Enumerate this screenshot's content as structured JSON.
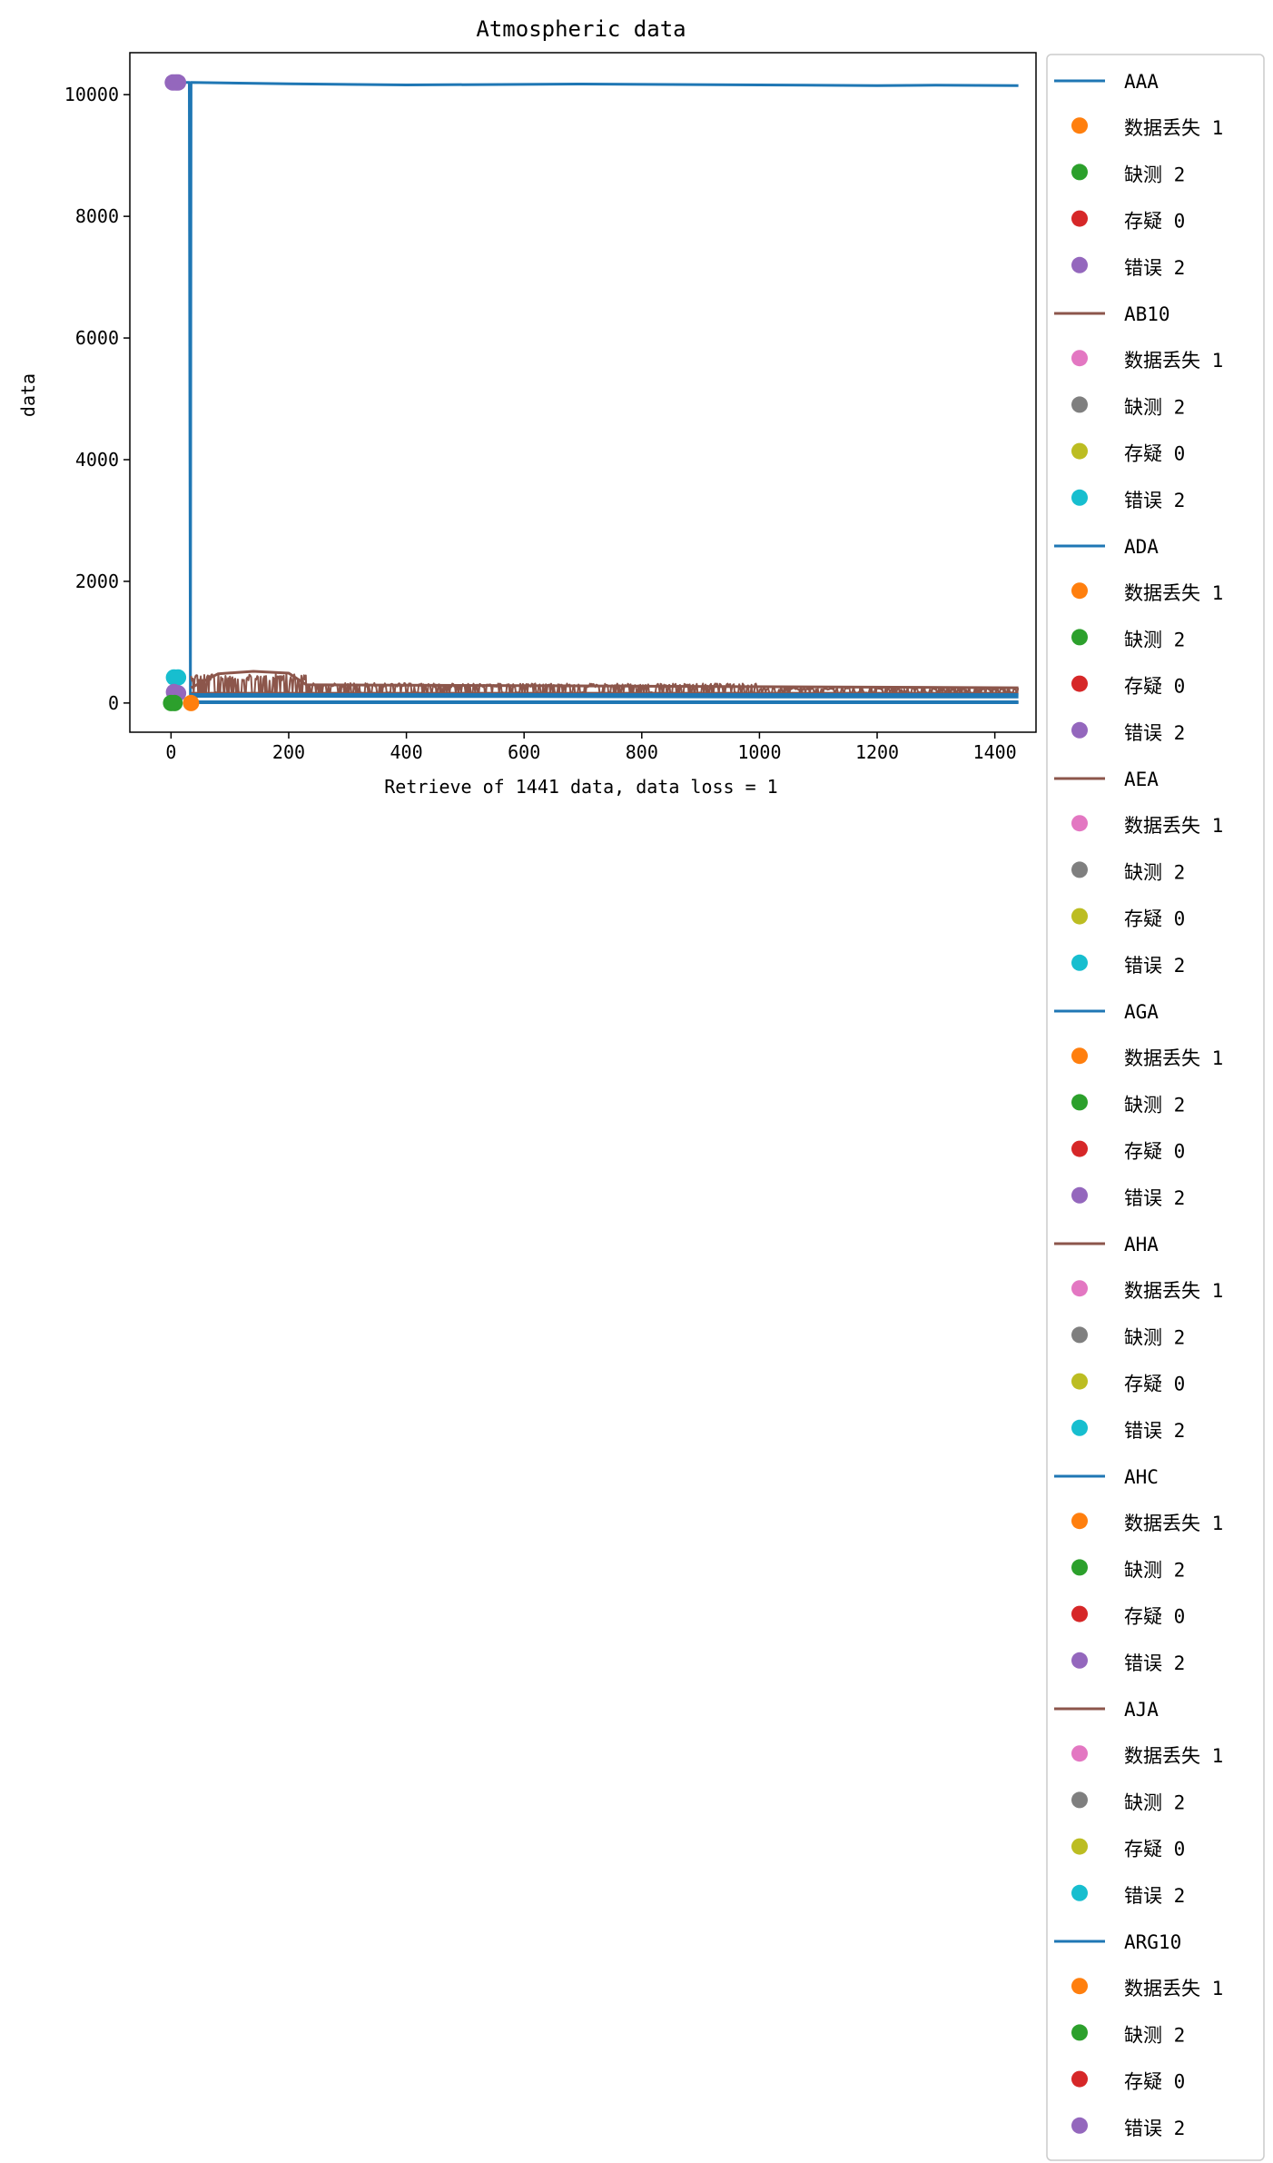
{
  "chart_data": {
    "type": "line",
    "title": "Atmospheric data",
    "xlabel": "Retrieve of 1441 data, data loss = 1",
    "ylabel": "data",
    "xlim": [
      -70,
      1470
    ],
    "ylim": [
      -480,
      10690
    ],
    "x_ticks": [
      0,
      200,
      400,
      600,
      800,
      1000,
      1200,
      1400
    ],
    "y_ticks": [
      0,
      2000,
      4000,
      6000,
      8000,
      10000
    ],
    "grid": false,
    "legend_position": "outside-right",
    "colors": {
      "c0": "#1f77b4",
      "c1": "#ff7f0e",
      "c2": "#2ca02c",
      "c3": "#d62728",
      "c4": "#9467bd",
      "c5": "#8c564b",
      "c6": "#e377c2",
      "c7": "#7f7f7f",
      "c8": "#bcbd22",
      "c9": "#17becf"
    },
    "series": [
      {
        "name": "AAA",
        "color": "#1f77b4",
        "kind": "line",
        "points": [
          [
            0,
            10200
          ],
          [
            30,
            10200
          ],
          [
            31,
            10200
          ],
          [
            33,
            20
          ],
          [
            34,
            10200
          ],
          [
            200,
            10180
          ],
          [
            400,
            10160
          ],
          [
            700,
            10175
          ],
          [
            1000,
            10160
          ],
          [
            1200,
            10150
          ],
          [
            1300,
            10155
          ],
          [
            1440,
            10150
          ]
        ]
      },
      {
        "name": "AB10",
        "color": "#8c564b",
        "kind": "noisy",
        "segments": [
          {
            "x0": 34,
            "x1": 230,
            "low": 150,
            "high": 480
          },
          {
            "x0": 230,
            "x1": 400,
            "low": 150,
            "high": 330
          },
          {
            "x0": 400,
            "x1": 1000,
            "low": 150,
            "high": 320
          },
          {
            "x0": 1000,
            "x1": 1440,
            "low": 150,
            "high": 250
          }
        ]
      },
      {
        "name": "ADA",
        "color": "#1f77b4",
        "kind": "line",
        "points": [
          [
            34,
            110
          ],
          [
            200,
            110
          ],
          [
            600,
            105
          ],
          [
            1000,
            100
          ],
          [
            1440,
            100
          ]
        ]
      },
      {
        "name": "AEA",
        "color": "#8c564b",
        "kind": "line",
        "points": [
          [
            34,
            10
          ],
          [
            1440,
            10
          ]
        ]
      },
      {
        "name": "AGA",
        "color": "#1f77b4",
        "kind": "line",
        "points": [
          [
            34,
            5
          ],
          [
            1440,
            5
          ]
        ]
      },
      {
        "name": "AHA",
        "color": "#8c564b",
        "kind": "line",
        "points": [
          [
            34,
            160
          ],
          [
            1440,
            160
          ]
        ]
      },
      {
        "name": "AHC",
        "color": "#1f77b4",
        "kind": "line",
        "points": [
          [
            34,
            140
          ],
          [
            1440,
            140
          ]
        ]
      },
      {
        "name": "AJA",
        "color": "#8c564b",
        "kind": "line",
        "points": [
          [
            34,
            250
          ],
          [
            80,
            480
          ],
          [
            140,
            520
          ],
          [
            200,
            490
          ],
          [
            230,
            300
          ],
          [
            1440,
            250
          ]
        ]
      },
      {
        "name": "ARG10",
        "color": "#1f77b4",
        "kind": "line",
        "points": [
          [
            34,
            20
          ],
          [
            1440,
            20
          ]
        ]
      }
    ],
    "markers": [
      {
        "x": 3,
        "y": 10200,
        "color": "#9467bd"
      },
      {
        "x": 8,
        "y": 10200,
        "color": "#9467bd"
      },
      {
        "x": 12,
        "y": 10200,
        "color": "#9467bd"
      },
      {
        "x": 5,
        "y": 420,
        "color": "#17becf"
      },
      {
        "x": 12,
        "y": 420,
        "color": "#17becf"
      },
      {
        "x": 5,
        "y": 180,
        "color": "#9467bd"
      },
      {
        "x": 12,
        "y": 160,
        "color": "#9467bd"
      },
      {
        "x": 0,
        "y": 0,
        "color": "#2ca02c"
      },
      {
        "x": 6,
        "y": 0,
        "color": "#2ca02c"
      },
      {
        "x": 34,
        "y": 0,
        "color": "#ff7f0e"
      }
    ],
    "legend": [
      {
        "label": "AAA",
        "kind": "line",
        "color": "#1f77b4"
      },
      {
        "label": "数据丢失 1",
        "kind": "marker",
        "color": "#ff7f0e"
      },
      {
        "label": "缺测 2",
        "kind": "marker",
        "color": "#2ca02c"
      },
      {
        "label": "存疑 0",
        "kind": "marker",
        "color": "#d62728"
      },
      {
        "label": "错误 2",
        "kind": "marker",
        "color": "#9467bd"
      },
      {
        "label": "AB10",
        "kind": "line",
        "color": "#8c564b"
      },
      {
        "label": "数据丢失 1",
        "kind": "marker",
        "color": "#e377c2"
      },
      {
        "label": "缺测 2",
        "kind": "marker",
        "color": "#7f7f7f"
      },
      {
        "label": "存疑 0",
        "kind": "marker",
        "color": "#bcbd22"
      },
      {
        "label": "错误 2",
        "kind": "marker",
        "color": "#17becf"
      },
      {
        "label": "ADA",
        "kind": "line",
        "color": "#1f77b4"
      },
      {
        "label": "数据丢失 1",
        "kind": "marker",
        "color": "#ff7f0e"
      },
      {
        "label": "缺测 2",
        "kind": "marker",
        "color": "#2ca02c"
      },
      {
        "label": "存疑 0",
        "kind": "marker",
        "color": "#d62728"
      },
      {
        "label": "错误 2",
        "kind": "marker",
        "color": "#9467bd"
      },
      {
        "label": "AEA",
        "kind": "line",
        "color": "#8c564b"
      },
      {
        "label": "数据丢失 1",
        "kind": "marker",
        "color": "#e377c2"
      },
      {
        "label": "缺测 2",
        "kind": "marker",
        "color": "#7f7f7f"
      },
      {
        "label": "存疑 0",
        "kind": "marker",
        "color": "#bcbd22"
      },
      {
        "label": "错误 2",
        "kind": "marker",
        "color": "#17becf"
      },
      {
        "label": "AGA",
        "kind": "line",
        "color": "#1f77b4"
      },
      {
        "label": "数据丢失 1",
        "kind": "marker",
        "color": "#ff7f0e"
      },
      {
        "label": "缺测 2",
        "kind": "marker",
        "color": "#2ca02c"
      },
      {
        "label": "存疑 0",
        "kind": "marker",
        "color": "#d62728"
      },
      {
        "label": "错误 2",
        "kind": "marker",
        "color": "#9467bd"
      },
      {
        "label": "AHA",
        "kind": "line",
        "color": "#8c564b"
      },
      {
        "label": "数据丢失 1",
        "kind": "marker",
        "color": "#e377c2"
      },
      {
        "label": "缺测 2",
        "kind": "marker",
        "color": "#7f7f7f"
      },
      {
        "label": "存疑 0",
        "kind": "marker",
        "color": "#bcbd22"
      },
      {
        "label": "错误 2",
        "kind": "marker",
        "color": "#17becf"
      },
      {
        "label": "AHC",
        "kind": "line",
        "color": "#1f77b4"
      },
      {
        "label": "数据丢失 1",
        "kind": "marker",
        "color": "#ff7f0e"
      },
      {
        "label": "缺测 2",
        "kind": "marker",
        "color": "#2ca02c"
      },
      {
        "label": "存疑 0",
        "kind": "marker",
        "color": "#d62728"
      },
      {
        "label": "错误 2",
        "kind": "marker",
        "color": "#9467bd"
      },
      {
        "label": "AJA",
        "kind": "line",
        "color": "#8c564b"
      },
      {
        "label": "数据丢失 1",
        "kind": "marker",
        "color": "#e377c2"
      },
      {
        "label": "缺测 2",
        "kind": "marker",
        "color": "#7f7f7f"
      },
      {
        "label": "存疑 0",
        "kind": "marker",
        "color": "#bcbd22"
      },
      {
        "label": "错误 2",
        "kind": "marker",
        "color": "#17becf"
      },
      {
        "label": "ARG10",
        "kind": "line",
        "color": "#1f77b4"
      },
      {
        "label": "数据丢失 1",
        "kind": "marker",
        "color": "#ff7f0e"
      },
      {
        "label": "缺测 2",
        "kind": "marker",
        "color": "#2ca02c"
      },
      {
        "label": "存疑 0",
        "kind": "marker",
        "color": "#d62728"
      },
      {
        "label": "错误 2",
        "kind": "marker",
        "color": "#9467bd"
      }
    ]
  }
}
